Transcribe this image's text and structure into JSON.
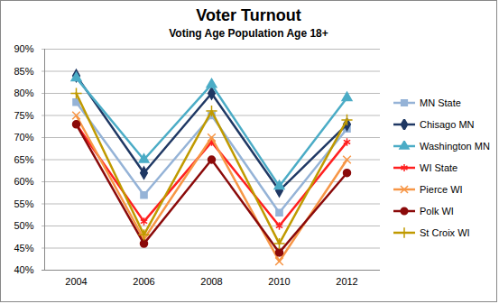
{
  "chart_data": {
    "type": "line",
    "title": "Voter Turnout",
    "subtitle": "Voting Age Population Age 18+",
    "categories": [
      "2004",
      "2006",
      "2008",
      "2010",
      "2012"
    ],
    "series": [
      {
        "name": "MN State",
        "color": "#95b3d7",
        "marker": "square",
        "values": [
          78,
          57,
          75,
          53,
          72
        ]
      },
      {
        "name": "Chisago MN",
        "color": "#1f3864",
        "marker": "diamond",
        "values": [
          84,
          62,
          80,
          58,
          73
        ]
      },
      {
        "name": "Washington MN",
        "color": "#4bacc6",
        "marker": "triangle",
        "values": [
          83.5,
          65,
          82,
          59,
          79
        ]
      },
      {
        "name": "WI State",
        "color": "#ff2020",
        "marker": "asterisk",
        "values": [
          73,
          51,
          69,
          50,
          69
        ]
      },
      {
        "name": "Pierce WI",
        "color": "#f79646",
        "marker": "x",
        "values": [
          75,
          47,
          70,
          42,
          65
        ]
      },
      {
        "name": "Polk WI",
        "color": "#8b0a0a",
        "marker": "circle",
        "values": [
          73,
          46,
          65,
          44,
          62
        ]
      },
      {
        "name": "St Croix WI",
        "color": "#c09a00",
        "marker": "plus",
        "values": [
          80,
          48,
          76,
          46,
          74
        ]
      }
    ],
    "ylim": [
      40,
      90
    ],
    "yticks": [
      {
        "value": 40,
        "label": "40%"
      },
      {
        "value": 45,
        "label": "45%"
      },
      {
        "value": 50,
        "label": "50%"
      },
      {
        "value": 55,
        "label": "55%"
      },
      {
        "value": 60,
        "label": "60%"
      },
      {
        "value": 65,
        "label": "65%"
      },
      {
        "value": 70,
        "label": "70%"
      },
      {
        "value": 75,
        "label": "75%"
      },
      {
        "value": 80,
        "label": "80%"
      },
      {
        "value": 85,
        "label": "85%"
      },
      {
        "value": 90,
        "label": "90%"
      }
    ],
    "grid": true,
    "legend": "right"
  }
}
